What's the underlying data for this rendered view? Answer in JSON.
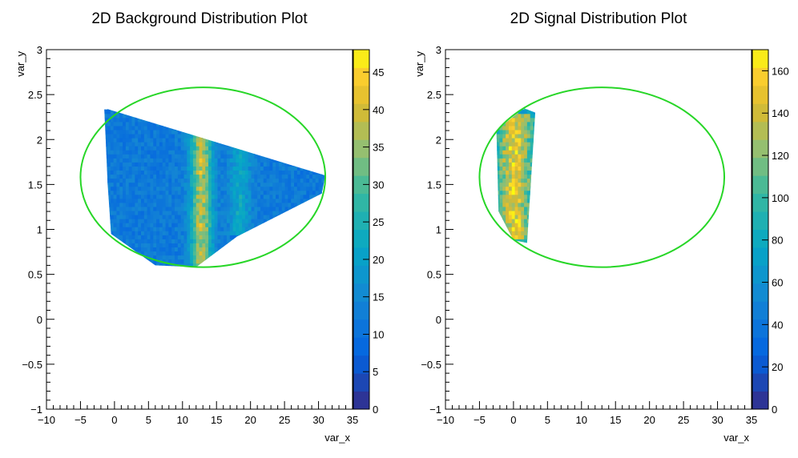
{
  "chart_data": [
    {
      "type": "heatmap",
      "title": "2D Background Distribution Plot",
      "xlabel": "var_x",
      "ylabel": "var_y",
      "xlim": [
        -10,
        35
      ],
      "ylim": [
        -1,
        3
      ],
      "xticks": [
        -10,
        -5,
        0,
        5,
        10,
        15,
        20,
        25,
        30,
        35
      ],
      "xtick_labels": [
        "−10",
        "−5",
        "0",
        "5",
        "10",
        "15",
        "20",
        "25",
        "30",
        "35"
      ],
      "yticks": [
        -1,
        -0.5,
        0,
        0.5,
        1,
        1.5,
        2,
        2.5,
        3
      ],
      "ytick_labels": [
        "−1",
        "−0.5",
        "0",
        "0.5",
        "1",
        "1.5",
        "2",
        "2.5",
        "3"
      ],
      "colorbar": {
        "min": 0,
        "max": 48,
        "ticks": [
          0,
          5,
          10,
          15,
          20,
          25,
          30,
          35,
          40,
          45
        ],
        "tick_labels": [
          "0",
          "5",
          "10",
          "15",
          "20",
          "25",
          "30",
          "35",
          "40",
          "45"
        ]
      },
      "region": {
        "polygon": [
          [
            -1.5,
            2.35
          ],
          [
            31,
            1.6
          ],
          [
            30.5,
            1.4
          ],
          [
            18,
            0.92
          ],
          [
            12,
            0.58
          ],
          [
            6,
            0.6
          ],
          [
            -0.5,
            0.95
          ],
          [
            -1,
            1.5
          ]
        ],
        "base_value": 12,
        "bands": [
          {
            "x_center": 12.8,
            "x_width": 1.6,
            "peak_value": 38,
            "y_min": 0.6,
            "y_max": 2.12
          },
          {
            "x_center": 18.5,
            "x_width": 1.5,
            "peak_value": 22,
            "y_min": 0.95,
            "y_max": 2.0
          }
        ]
      },
      "ellipse": {
        "center": [
          13,
          1.58
        ],
        "semi_axis_x": 18,
        "semi_axis_y": 1.0,
        "color": "#27d627"
      }
    },
    {
      "type": "heatmap",
      "title": "2D Signal Distribution Plot",
      "xlabel": "var_x",
      "ylabel": "var_y",
      "xlim": [
        -10,
        35
      ],
      "ylim": [
        -1,
        3
      ],
      "xticks": [
        -10,
        -5,
        0,
        5,
        10,
        15,
        20,
        25,
        30,
        35
      ],
      "xtick_labels": [
        "−10",
        "−5",
        "0",
        "5",
        "10",
        "15",
        "20",
        "25",
        "30",
        "35"
      ],
      "yticks": [
        -1,
        -0.5,
        0,
        0.5,
        1,
        1.5,
        2,
        2.5,
        3
      ],
      "ytick_labels": [
        "−1",
        "−0.5",
        "0",
        "0.5",
        "1",
        "1.5",
        "2",
        "2.5",
        "3"
      ],
      "colorbar": {
        "min": 0,
        "max": 170,
        "ticks": [
          0,
          20,
          40,
          60,
          80,
          100,
          120,
          140,
          160
        ],
        "tick_labels": [
          "0",
          "20",
          "40",
          "60",
          "80",
          "100",
          "120",
          "140",
          "160"
        ]
      },
      "region": {
        "polygon": [
          [
            -2.5,
            2.1
          ],
          [
            1.5,
            2.35
          ],
          [
            3.2,
            2.3
          ],
          [
            2,
            0.85
          ],
          [
            0,
            0.88
          ],
          [
            -2.2,
            1.2
          ]
        ],
        "base_value": 80,
        "bands": [
          {
            "x_center": 0.2,
            "x_width": 2.2,
            "peak_value": 150,
            "y_min": 0.9,
            "y_max": 2.3
          }
        ]
      },
      "ellipse": {
        "center": [
          13,
          1.58
        ],
        "semi_axis_x": 18,
        "semi_axis_y": 1.0,
        "color": "#27d627"
      }
    }
  ]
}
